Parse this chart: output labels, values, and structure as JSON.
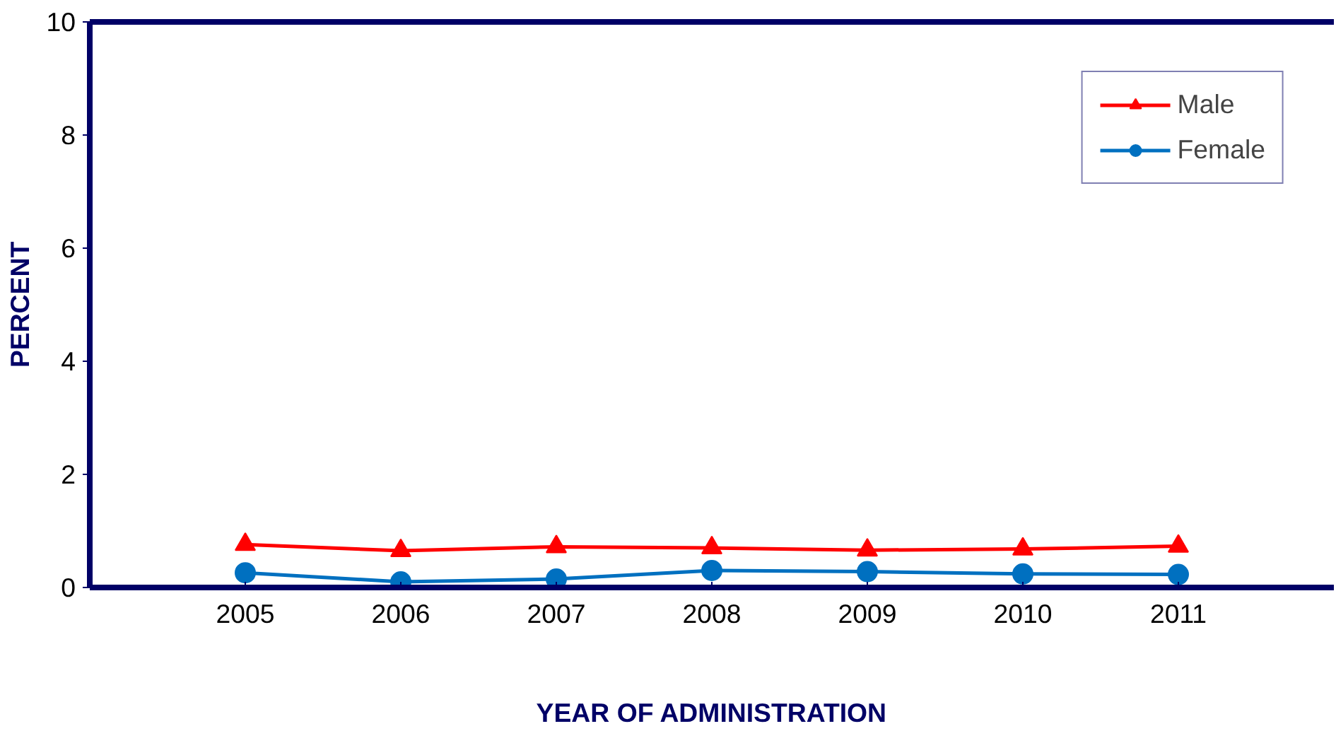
{
  "chart_data": {
    "type": "line",
    "xlabel": "YEAR OF ADMINISTRATION",
    "ylabel": "PERCENT",
    "categories": [
      "2005",
      "2006",
      "2007",
      "2008",
      "2009",
      "2010",
      "2011"
    ],
    "series": [
      {
        "name": "Male",
        "color": "#ff0000",
        "marker": "triangle",
        "values": [
          0.76,
          0.65,
          0.72,
          0.7,
          0.66,
          0.68,
          0.73
        ]
      },
      {
        "name": "Female",
        "color": "#0070c0",
        "marker": "circle",
        "values": [
          0.26,
          0.1,
          0.15,
          0.3,
          0.28,
          0.24,
          0.23
        ]
      }
    ],
    "ylim": [
      0,
      10
    ],
    "yticks": [
      0,
      2,
      4,
      6,
      8,
      10
    ],
    "grid": false,
    "legend": "top right"
  }
}
